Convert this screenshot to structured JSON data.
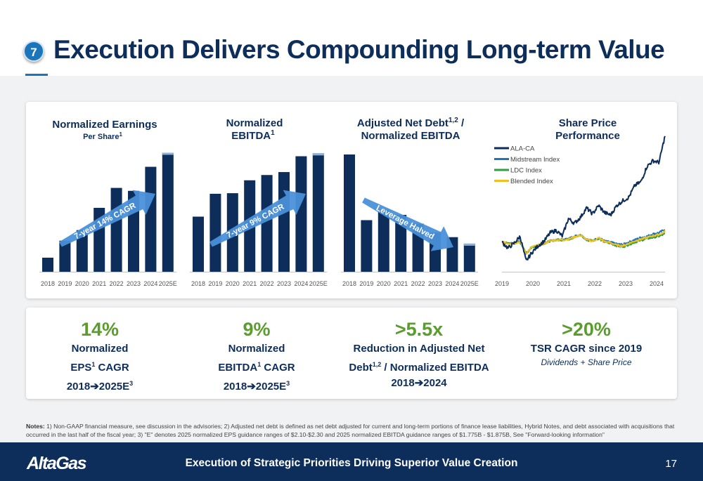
{
  "slide": {
    "number": "7",
    "title": "Execution Delivers Compounding Long-term Value",
    "page": "17",
    "footer": "Execution of Strategic Priorities Driving Superior Value Creation",
    "logo": "AltaGas"
  },
  "charts_titles": {
    "eps_title": "Normalized Earnings",
    "eps_sub": "Per Share",
    "eps_sup": "1",
    "ebitda_title1": "Normalized",
    "ebitda_title2": "EBITDA",
    "ebitda_sup": "1",
    "debt_title1": "Adjusted Net Debt",
    "debt_sup": "1,2",
    "debt_title1b": " /",
    "debt_title2": "Normalized EBITDA",
    "share_title1": "Share Price",
    "share_title2": "Performance"
  },
  "chart_data": [
    {
      "type": "bar",
      "name": "eps",
      "categories": [
        "2018",
        "2019",
        "2020",
        "2021",
        "2022",
        "2023",
        "2024",
        "2025E"
      ],
      "values": [
        1.2,
        2.65,
        3.55,
        5.45,
        7.15,
        6.9,
        8.95,
        10.15
      ],
      "annotation": "7-year 14% CAGR",
      "ylim": [
        0,
        10.3
      ]
    },
    {
      "type": "bar",
      "name": "ebitda",
      "categories": [
        "2018",
        "2019",
        "2020",
        "2021",
        "2022",
        "2023",
        "2024",
        "2025E"
      ],
      "values": [
        4.7,
        6.65,
        6.7,
        7.8,
        8.25,
        8.5,
        9.85,
        10.1
      ],
      "annotation": "7-year 9% CAGR",
      "ylim": [
        0,
        10.3
      ]
    },
    {
      "type": "bar",
      "name": "debt",
      "categories": [
        "2018",
        "2019",
        "2020",
        "2021",
        "2022",
        "2023",
        "2024",
        "2025E"
      ],
      "values": [
        10.0,
        4.4,
        5.3,
        4.85,
        4.1,
        3.35,
        2.95,
        2.4
      ],
      "annotation": "Leverage Halved",
      "ylim": [
        0,
        10.3
      ]
    },
    {
      "type": "line",
      "name": "share",
      "x_labels": [
        "2019",
        "2020",
        "2021",
        "2022",
        "2023",
        "2024"
      ],
      "series": [
        {
          "name": "ALA-CA",
          "color": "#0d2d5a",
          "values": [
            50,
            40,
            48,
            60,
            18,
            33,
            44,
            52,
            66,
            70,
            60,
            90,
            82,
            92,
            108,
            98,
            112,
            100,
            96,
            112,
            120,
            126,
            146,
            152,
            178,
            188,
            185,
            230
          ],
          "noise": 3.2
        },
        {
          "name": "Midstream Index",
          "color": "#1b75bb",
          "values": [
            50,
            48,
            48,
            52,
            30,
            42,
            44,
            48,
            52,
            54,
            54,
            56,
            60,
            63,
            54,
            52,
            58,
            52,
            50,
            47,
            46,
            50,
            54,
            58,
            60,
            64,
            66,
            72
          ],
          "noise": 1.6
        },
        {
          "name": "LDC Index",
          "color": "#2f9e3e",
          "values": [
            50,
            48,
            48,
            50,
            32,
            42,
            45,
            48,
            52,
            54,
            54,
            55,
            58,
            62,
            55,
            53,
            56,
            50,
            48,
            44,
            42,
            46,
            50,
            53,
            56,
            58,
            60,
            64
          ],
          "noise": 1.6
        },
        {
          "name": "Blended Index",
          "color": "#f2c01e",
          "values": [
            50,
            48,
            48,
            51,
            31,
            42,
            45,
            48,
            52,
            54,
            54,
            55,
            59,
            62,
            54,
            52,
            57,
            51,
            49,
            45,
            44,
            48,
            52,
            55,
            58,
            61,
            63,
            68
          ],
          "noise": 1.6
        }
      ],
      "ylim": [
        0,
        240
      ]
    }
  ],
  "kpis": [
    {
      "big": "14%",
      "line1": "Normalized",
      "line2a": "EPS",
      "line2sup": "1",
      "line2b": " CAGR",
      "line3a": "2018",
      "line3b": "2025E",
      "line3sup": "3"
    },
    {
      "big": "9%",
      "line1": "Normalized",
      "line2a": "EBITDA",
      "line2sup": "1",
      "line2b": " CAGR",
      "line3a": "2018",
      "line3b": "2025E",
      "line3sup": "3"
    },
    {
      "big": ">5.5x",
      "line1": "Reduction in Adjusted Net",
      "line2a": "Debt",
      "line2sup": "1,2",
      "line2b": " / Normalized EBITDA",
      "line3a": "2018",
      "line3b": "2024",
      "line3sup": ""
    },
    {
      "big": ">20%",
      "line1": "TSR CAGR since 2019",
      "sub": "Dividends + Share Price"
    }
  ],
  "notes": {
    "label": "Notes:",
    "text": "1) Non-GAAP financial measure, see discussion in the advisories; 2) Adjusted net debt is defined as net debt adjusted for current and long-term portions of finance lease liabilities, Hybrid Notes, and debt associated with acquisitions that occurred in the last half of the fiscal year; 3) \"E\" denotes 2025 normalized EPS guidance ranges of $2.10-$2.30 and 2025 normalized EBITDA guidance ranges of $1.775B - $1.875B, See \"Forward-looking information\""
  },
  "colors": {
    "navy": "#0d2d5a",
    "blue": "#1b75bb",
    "green": "#5b9c2e",
    "arrow": "#4a90d9"
  }
}
